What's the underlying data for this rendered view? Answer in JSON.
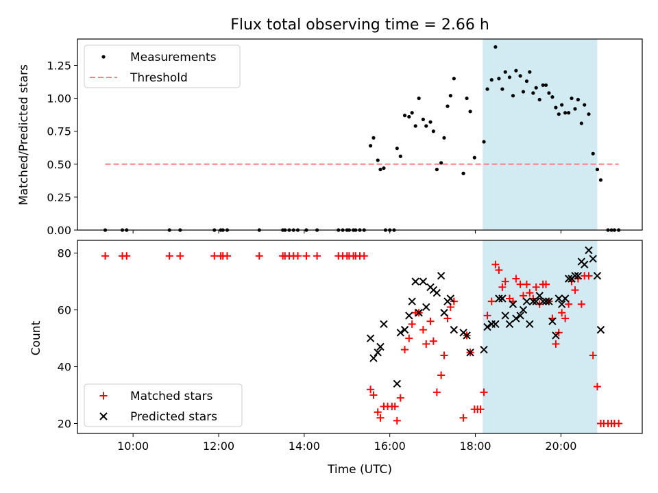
{
  "chart_data": [
    {
      "type": "scatter",
      "title": "Flux total observing time = 2.66 h",
      "xlabel": "",
      "ylabel": "Matched/Predicted stars",
      "xlim": [
        8.7,
        21.9
      ],
      "ylim": [
        0,
        1.45
      ],
      "yticks": [
        0.0,
        0.25,
        0.5,
        0.75,
        1.0,
        1.25
      ],
      "ytick_labels": [
        "0.00",
        "0.25",
        "0.50",
        "0.75",
        "1.00",
        "1.25"
      ],
      "xticks": [
        10,
        12,
        14,
        16,
        18,
        20
      ],
      "highlight_span": [
        18.17,
        20.85
      ],
      "highlight_color": "#add8e6",
      "legend_position": "upper left",
      "series": [
        {
          "name": "Measurements",
          "marker": "dot",
          "color": "#000000",
          "points": [
            [
              9.35,
              0
            ],
            [
              9.75,
              0
            ],
            [
              9.85,
              0
            ],
            [
              10.85,
              0
            ],
            [
              11.1,
              0
            ],
            [
              11.9,
              0
            ],
            [
              12.05,
              0
            ],
            [
              12.1,
              0
            ],
            [
              12.2,
              0
            ],
            [
              12.95,
              0
            ],
            [
              13.5,
              0
            ],
            [
              13.55,
              0
            ],
            [
              13.65,
              0
            ],
            [
              13.75,
              0
            ],
            [
              13.85,
              0
            ],
            [
              14.05,
              0
            ],
            [
              14.3,
              0
            ],
            [
              14.8,
              0
            ],
            [
              14.9,
              0
            ],
            [
              15.0,
              0
            ],
            [
              15.05,
              0
            ],
            [
              15.15,
              0
            ],
            [
              15.2,
              0
            ],
            [
              15.3,
              0
            ],
            [
              15.4,
              0
            ],
            [
              15.9,
              0
            ],
            [
              16.0,
              0
            ],
            [
              16.1,
              0
            ],
            [
              15.55,
              0.64
            ],
            [
              15.62,
              0.7
            ],
            [
              15.72,
              0.53
            ],
            [
              15.78,
              0.46
            ],
            [
              15.86,
              0.47
            ],
            [
              16.17,
              0.62
            ],
            [
              16.25,
              0.56
            ],
            [
              16.35,
              0.87
            ],
            [
              16.45,
              0.86
            ],
            [
              16.52,
              0.89
            ],
            [
              16.6,
              0.79
            ],
            [
              16.68,
              1.0
            ],
            [
              16.78,
              0.84
            ],
            [
              16.85,
              0.79
            ],
            [
              16.95,
              0.82
            ],
            [
              17.02,
              0.75
            ],
            [
              17.1,
              0.46
            ],
            [
              17.2,
              0.51
            ],
            [
              17.27,
              0.7
            ],
            [
              17.35,
              0.94
            ],
            [
              17.42,
              1.02
            ],
            [
              17.5,
              1.15
            ],
            [
              17.72,
              0.43
            ],
            [
              17.8,
              1.0
            ],
            [
              17.88,
              0.9
            ],
            [
              17.98,
              0.55
            ],
            [
              18.2,
              0.67
            ],
            [
              18.28,
              1.07
            ],
            [
              18.38,
              1.14
            ],
            [
              18.47,
              1.39
            ],
            [
              18.55,
              1.15
            ],
            [
              18.63,
              1.07
            ],
            [
              18.7,
              1.2
            ],
            [
              18.8,
              1.16
            ],
            [
              18.88,
              1.02
            ],
            [
              18.95,
              1.21
            ],
            [
              19.05,
              1.17
            ],
            [
              19.12,
              1.05
            ],
            [
              19.2,
              1.13
            ],
            [
              19.27,
              1.2
            ],
            [
              19.35,
              1.04
            ],
            [
              19.42,
              1.08
            ],
            [
              19.5,
              0.99
            ],
            [
              19.58,
              1.1
            ],
            [
              19.65,
              1.1
            ],
            [
              19.72,
              1.04
            ],
            [
              19.8,
              1.01
            ],
            [
              19.88,
              0.93
            ],
            [
              19.95,
              0.88
            ],
            [
              20.02,
              0.95
            ],
            [
              20.1,
              0.89
            ],
            [
              20.18,
              0.89
            ],
            [
              20.25,
              1.0
            ],
            [
              20.33,
              0.92
            ],
            [
              20.4,
              0.99
            ],
            [
              20.48,
              0.81
            ],
            [
              20.55,
              0.95
            ],
            [
              20.65,
              0.88
            ],
            [
              20.75,
              0.58
            ],
            [
              20.85,
              0.46
            ],
            [
              20.93,
              0.38
            ],
            [
              21.1,
              0
            ],
            [
              21.18,
              0
            ],
            [
              21.25,
              0
            ],
            [
              21.35,
              0
            ]
          ]
        },
        {
          "name": "Threshold",
          "style": "dashed",
          "color": "#ff7f7f",
          "points": [
            [
              9.35,
              0.5
            ],
            [
              21.35,
              0.5
            ]
          ]
        }
      ]
    },
    {
      "type": "scatter",
      "title": "",
      "xlabel": "Time (UTC)",
      "ylabel": "Count",
      "xlim": [
        8.7,
        21.9
      ],
      "ylim": [
        16.5,
        84.5
      ],
      "yticks": [
        20,
        40,
        60,
        80
      ],
      "ytick_labels": [
        "20",
        "40",
        "60",
        "80"
      ],
      "xticks": [
        10,
        12,
        14,
        16,
        18,
        20
      ],
      "xtick_labels": [
        "10:00",
        "12:00",
        "14:00",
        "16:00",
        "18:00",
        "20:00"
      ],
      "highlight_span": [
        18.17,
        20.85
      ],
      "highlight_color": "#add8e6",
      "legend_position": "lower left",
      "series": [
        {
          "name": "Matched stars",
          "marker": "plus",
          "color": "#ff0000",
          "points": [
            [
              9.35,
              79
            ],
            [
              9.75,
              79
            ],
            [
              9.85,
              79
            ],
            [
              10.85,
              79
            ],
            [
              11.1,
              79
            ],
            [
              11.9,
              79
            ],
            [
              12.05,
              79
            ],
            [
              12.1,
              79
            ],
            [
              12.2,
              79
            ],
            [
              12.95,
              79
            ],
            [
              13.5,
              79
            ],
            [
              13.55,
              79
            ],
            [
              13.65,
              79
            ],
            [
              13.75,
              79
            ],
            [
              13.85,
              79
            ],
            [
              14.05,
              79
            ],
            [
              14.3,
              79
            ],
            [
              14.8,
              79
            ],
            [
              14.9,
              79
            ],
            [
              15.0,
              79
            ],
            [
              15.05,
              79
            ],
            [
              15.15,
              79
            ],
            [
              15.2,
              79
            ],
            [
              15.3,
              79
            ],
            [
              15.4,
              79
            ],
            [
              15.55,
              32
            ],
            [
              15.62,
              30
            ],
            [
              15.72,
              24
            ],
            [
              15.78,
              22
            ],
            [
              15.86,
              26
            ],
            [
              15.95,
              26
            ],
            [
              16.05,
              26
            ],
            [
              16.12,
              26
            ],
            [
              16.17,
              21
            ],
            [
              16.25,
              29
            ],
            [
              16.35,
              46
            ],
            [
              16.45,
              50
            ],
            [
              16.52,
              55
            ],
            [
              16.6,
              59
            ],
            [
              16.68,
              59
            ],
            [
              16.78,
              53
            ],
            [
              16.85,
              48
            ],
            [
              16.95,
              56
            ],
            [
              17.02,
              49
            ],
            [
              17.1,
              31
            ],
            [
              17.2,
              37
            ],
            [
              17.27,
              44
            ],
            [
              17.35,
              57
            ],
            [
              17.42,
              61
            ],
            [
              17.5,
              63
            ],
            [
              17.72,
              22
            ],
            [
              17.8,
              51
            ],
            [
              17.88,
              45
            ],
            [
              17.98,
              25
            ],
            [
              18.05,
              25
            ],
            [
              18.12,
              25
            ],
            [
              18.2,
              31
            ],
            [
              18.28,
              58
            ],
            [
              18.38,
              63
            ],
            [
              18.47,
              76
            ],
            [
              18.55,
              74
            ],
            [
              18.63,
              68
            ],
            [
              18.7,
              70
            ],
            [
              18.8,
              64
            ],
            [
              18.88,
              63
            ],
            [
              18.95,
              71
            ],
            [
              19.05,
              69
            ],
            [
              19.12,
              65
            ],
            [
              19.2,
              69
            ],
            [
              19.27,
              66
            ],
            [
              19.35,
              64
            ],
            [
              19.42,
              68
            ],
            [
              19.5,
              62
            ],
            [
              19.58,
              69
            ],
            [
              19.65,
              69
            ],
            [
              19.72,
              63
            ],
            [
              19.8,
              57
            ],
            [
              19.88,
              48
            ],
            [
              19.95,
              52
            ],
            [
              20.02,
              59
            ],
            [
              20.1,
              57
            ],
            [
              20.18,
              62
            ],
            [
              20.25,
              70
            ],
            [
              20.33,
              67
            ],
            [
              20.4,
              71
            ],
            [
              20.48,
              62
            ],
            [
              20.55,
              72
            ],
            [
              20.65,
              72
            ],
            [
              20.75,
              44
            ],
            [
              20.85,
              33
            ],
            [
              20.93,
              20
            ],
            [
              21.0,
              20
            ],
            [
              21.1,
              20
            ],
            [
              21.18,
              20
            ],
            [
              21.25,
              20
            ],
            [
              21.35,
              20
            ]
          ]
        },
        {
          "name": "Predicted stars",
          "marker": "x",
          "color": "#000000",
          "points": [
            [
              15.55,
              50
            ],
            [
              15.62,
              43
            ],
            [
              15.72,
              45
            ],
            [
              15.78,
              47
            ],
            [
              15.86,
              55
            ],
            [
              16.17,
              34
            ],
            [
              16.25,
              52
            ],
            [
              16.35,
              53
            ],
            [
              16.45,
              58
            ],
            [
              16.52,
              63
            ],
            [
              16.6,
              70
            ],
            [
              16.68,
              59
            ],
            [
              16.78,
              70
            ],
            [
              16.85,
              61
            ],
            [
              16.95,
              68
            ],
            [
              17.02,
              67
            ],
            [
              17.1,
              66
            ],
            [
              17.2,
              72
            ],
            [
              17.27,
              59
            ],
            [
              17.35,
              63
            ],
            [
              17.42,
              64
            ],
            [
              17.5,
              53
            ],
            [
              17.72,
              52
            ],
            [
              17.8,
              51
            ],
            [
              17.88,
              45
            ],
            [
              18.2,
              46
            ],
            [
              18.28,
              54
            ],
            [
              18.38,
              55
            ],
            [
              18.47,
              55
            ],
            [
              18.55,
              64
            ],
            [
              18.63,
              64
            ],
            [
              18.7,
              58
            ],
            [
              18.8,
              55
            ],
            [
              18.88,
              62
            ],
            [
              18.95,
              57
            ],
            [
              19.05,
              58
            ],
            [
              19.12,
              60
            ],
            [
              19.2,
              63
            ],
            [
              19.27,
              55
            ],
            [
              19.35,
              63
            ],
            [
              19.42,
              63
            ],
            [
              19.5,
              65
            ],
            [
              19.58,
              63
            ],
            [
              19.65,
              63
            ],
            [
              19.72,
              63
            ],
            [
              19.8,
              56
            ],
            [
              19.88,
              51
            ],
            [
              19.95,
              64
            ],
            [
              20.02,
              62
            ],
            [
              20.1,
              64
            ],
            [
              20.18,
              71
            ],
            [
              20.25,
              71
            ],
            [
              20.33,
              72
            ],
            [
              20.4,
              72
            ],
            [
              20.48,
              77
            ],
            [
              20.55,
              76
            ],
            [
              20.65,
              81
            ],
            [
              20.75,
              78
            ],
            [
              20.85,
              72
            ],
            [
              20.93,
              53
            ]
          ]
        }
      ]
    }
  ]
}
